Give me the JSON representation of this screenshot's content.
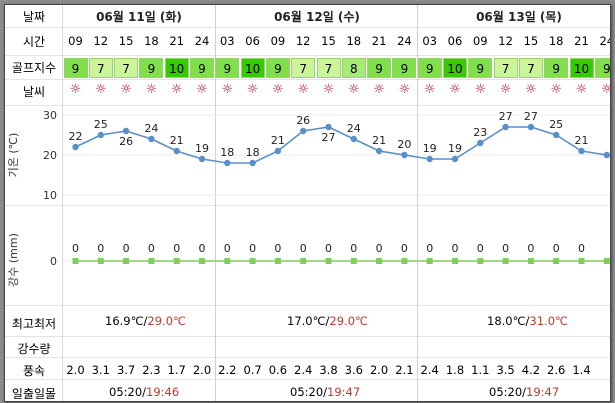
{
  "labels": {
    "date": "날짜",
    "time": "시간",
    "golf_index": "골프지수",
    "weather": "날씨",
    "temperature_axis": "기온 (℃)",
    "precip_axis": "강수 (mm)",
    "high_low": "최고최저",
    "precip_amount": "강수량",
    "wind": "풍속",
    "sunrise_sunset": "일출일몰"
  },
  "days": [
    {
      "date": "06월 11일 (화)",
      "min": "16.9℃",
      "max": "29.0℃",
      "sunrise": "05:20",
      "sunset": "19:46"
    },
    {
      "date": "06월 12일 (수)",
      "min": "17.0℃",
      "max": "29.0℃",
      "sunrise": "05:20",
      "sunset": "19:47"
    },
    {
      "date": "06월 13일 (목)",
      "min": "18.0℃",
      "max": "31.0℃",
      "sunrise": "05:20",
      "sunset": "19:47"
    }
  ],
  "hours": [
    "09",
    "12",
    "15",
    "18",
    "21",
    "24",
    "03",
    "06",
    "09",
    "12",
    "15",
    "18",
    "21",
    "24",
    "03",
    "06",
    "09",
    "12",
    "15",
    "18",
    "21",
    "24"
  ],
  "golf_index": [
    9,
    7,
    7,
    9,
    10,
    9,
    9,
    10,
    9,
    7,
    7,
    8,
    9,
    9,
    9,
    10,
    9,
    7,
    7,
    9,
    10,
    9
  ],
  "weather_icon": "sun-icon",
  "weather_glyph": "☼",
  "colors": {
    "golf_10": "#33cc00",
    "golf_9": "#7fe04a",
    "golf_8": "#a6ea7a",
    "golf_7": "#ccf59a",
    "temp_line": "#5b8fc9",
    "precip_line": "#7dcf5a",
    "max_temp": "#c0392b"
  },
  "chart_data": [
    {
      "type": "line",
      "name": "temperature",
      "ylabel": "기온 (℃)",
      "ylim": [
        10,
        30
      ],
      "yticks": [
        10,
        20,
        30
      ],
      "categories": [
        "09",
        "12",
        "15",
        "18",
        "21",
        "24",
        "03",
        "06",
        "09",
        "12",
        "15",
        "18",
        "21",
        "24",
        "03",
        "06",
        "09",
        "12",
        "15",
        "18",
        "21",
        "24"
      ],
      "values": [
        22,
        25,
        26,
        24,
        21,
        19,
        18,
        18,
        21,
        26,
        27,
        24,
        21,
        20,
        19,
        19,
        23,
        27,
        27,
        25,
        21,
        20
      ],
      "value_labels": [
        "22",
        "25",
        "26",
        "24",
        "21",
        "19",
        "18",
        "18",
        "21",
        "26",
        "27",
        "24",
        "21",
        "20",
        "19",
        "19",
        "23",
        "27",
        "27",
        "25",
        "21",
        ""
      ]
    },
    {
      "type": "line",
      "name": "precipitation",
      "ylabel": "강수 (mm)",
      "yticks": [
        0
      ],
      "categories": [
        "09",
        "12",
        "15",
        "18",
        "21",
        "24",
        "03",
        "06",
        "09",
        "12",
        "15",
        "18",
        "21",
        "24",
        "03",
        "06",
        "09",
        "12",
        "15",
        "18",
        "21",
        "24"
      ],
      "values": [
        0,
        0,
        0,
        0,
        0,
        0,
        0,
        0,
        0,
        0,
        0,
        0,
        0,
        0,
        0,
        0,
        0,
        0,
        0,
        0,
        0,
        0
      ],
      "value_labels": [
        "0",
        "0",
        "0",
        "0",
        "0",
        "0",
        "0",
        "0",
        "0",
        "0",
        "0",
        "0",
        "0",
        "0",
        "0",
        "0",
        "0",
        "0",
        "0",
        "0",
        "0",
        ""
      ]
    }
  ],
  "wind": [
    "2.0",
    "3.1",
    "3.7",
    "2.3",
    "1.7",
    "2.0",
    "2.2",
    "0.7",
    "0.6",
    "2.4",
    "3.8",
    "3.6",
    "2.0",
    "2.1",
    "2.4",
    "1.8",
    "1.1",
    "3.5",
    "4.2",
    "2.6",
    "1.4",
    ""
  ]
}
